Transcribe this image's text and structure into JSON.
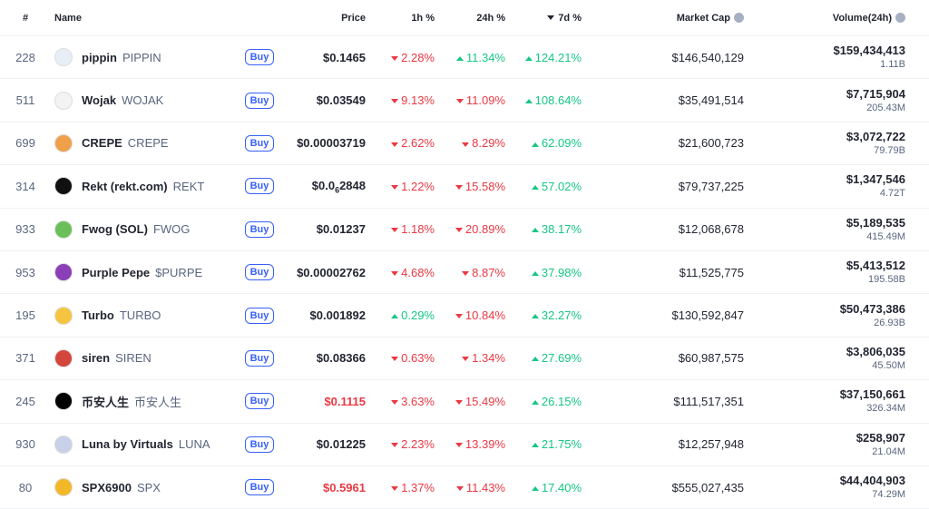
{
  "table": {
    "headers": {
      "rank": "#",
      "name": "Name",
      "price": "Price",
      "h1": "1h %",
      "h24": "24h %",
      "d7": "7d %",
      "market_cap": "Market Cap",
      "volume": "Volume(24h)"
    },
    "buy_label": "Buy",
    "rows": [
      {
        "rank": "228",
        "name": "pippin",
        "symbol": "PIPPIN",
        "price": "$0.1465",
        "h1": {
          "text": "2.28%",
          "dir": "down"
        },
        "h24": {
          "text": "11.34%",
          "dir": "up"
        },
        "d7": {
          "text": "124.21%",
          "dir": "up"
        },
        "market_cap": "$146,540,129",
        "volume": "$159,434,413",
        "volume_sub": "1.11B"
      },
      {
        "rank": "511",
        "name": "Wojak",
        "symbol": "WOJAK",
        "price": "$0.03549",
        "h1": {
          "text": "9.13%",
          "dir": "down"
        },
        "h24": {
          "text": "11.09%",
          "dir": "down"
        },
        "d7": {
          "text": "108.64%",
          "dir": "up"
        },
        "market_cap": "$35,491,514",
        "volume": "$7,715,904",
        "volume_sub": "205.43M"
      },
      {
        "rank": "699",
        "name": "CREPE",
        "symbol": "CREPE",
        "price": "$0.00003719",
        "h1": {
          "text": "2.62%",
          "dir": "down"
        },
        "h24": {
          "text": "8.29%",
          "dir": "down"
        },
        "d7": {
          "text": "62.09%",
          "dir": "up"
        },
        "market_cap": "$21,600,723",
        "volume": "$3,072,722",
        "volume_sub": "79.79B"
      },
      {
        "rank": "314",
        "name": "Rekt (rekt.com)",
        "symbol": "REKT",
        "price": [
          "$0.0",
          "6",
          "2848"
        ],
        "h1": {
          "text": "1.22%",
          "dir": "down"
        },
        "h24": {
          "text": "15.58%",
          "dir": "down"
        },
        "d7": {
          "text": "57.02%",
          "dir": "up"
        },
        "market_cap": "$79,737,225",
        "volume": "$1,347,546",
        "volume_sub": "4.72T"
      },
      {
        "rank": "933",
        "name": "Fwog (SOL)",
        "symbol": "FWOG",
        "price": "$0.01237",
        "h1": {
          "text": "1.18%",
          "dir": "down"
        },
        "h24": {
          "text": "20.89%",
          "dir": "down"
        },
        "d7": {
          "text": "38.17%",
          "dir": "up"
        },
        "market_cap": "$12,068,678",
        "volume": "$5,189,535",
        "volume_sub": "415.49M"
      },
      {
        "rank": "953",
        "name": "Purple Pepe",
        "symbol": "$PURPE",
        "price": "$0.00002762",
        "h1": {
          "text": "4.68%",
          "dir": "down"
        },
        "h24": {
          "text": "8.87%",
          "dir": "down"
        },
        "d7": {
          "text": "37.98%",
          "dir": "up"
        },
        "market_cap": "$11,525,775",
        "volume": "$5,413,512",
        "volume_sub": "195.58B"
      },
      {
        "rank": "195",
        "name": "Turbo",
        "symbol": "TURBO",
        "price": "$0.001892",
        "h1": {
          "text": "0.29%",
          "dir": "up"
        },
        "h24": {
          "text": "10.84%",
          "dir": "down"
        },
        "d7": {
          "text": "32.27%",
          "dir": "up"
        },
        "market_cap": "$130,592,847",
        "volume": "$50,473,386",
        "volume_sub": "26.93B"
      },
      {
        "rank": "371",
        "name": "siren",
        "symbol": "SIREN",
        "price": "$0.08366",
        "h1": {
          "text": "0.63%",
          "dir": "down"
        },
        "h24": {
          "text": "1.34%",
          "dir": "down"
        },
        "d7": {
          "text": "27.69%",
          "dir": "up"
        },
        "market_cap": "$60,987,575",
        "volume": "$3,806,035",
        "volume_sub": "45.50M"
      },
      {
        "rank": "245",
        "name": "币安人生",
        "symbol": "币安人生",
        "price": "$0.1115",
        "price_color": "#ea3943",
        "h1": {
          "text": "3.63%",
          "dir": "down"
        },
        "h24": {
          "text": "15.49%",
          "dir": "down"
        },
        "d7": {
          "text": "26.15%",
          "dir": "up"
        },
        "market_cap": "$111,517,351",
        "volume": "$37,150,661",
        "volume_sub": "326.34M"
      },
      {
        "rank": "930",
        "name": "Luna by Virtuals",
        "symbol": "LUNA",
        "price": "$0.01225",
        "h1": {
          "text": "2.23%",
          "dir": "down"
        },
        "h24": {
          "text": "13.39%",
          "dir": "down"
        },
        "d7": {
          "text": "21.75%",
          "dir": "up"
        },
        "market_cap": "$12,257,948",
        "volume": "$258,907",
        "volume_sub": "21.04M"
      },
      {
        "rank": "80",
        "name": "SPX6900",
        "symbol": "SPX",
        "price": "$0.5961",
        "price_color": "#ea3943",
        "h1": {
          "text": "1.37%",
          "dir": "down"
        },
        "h24": {
          "text": "11.43%",
          "dir": "down"
        },
        "d7": {
          "text": "17.40%",
          "dir": "up"
        },
        "market_cap": "$555,027,435",
        "volume": "$44,404,903",
        "volume_sub": "74.29M"
      }
    ]
  }
}
